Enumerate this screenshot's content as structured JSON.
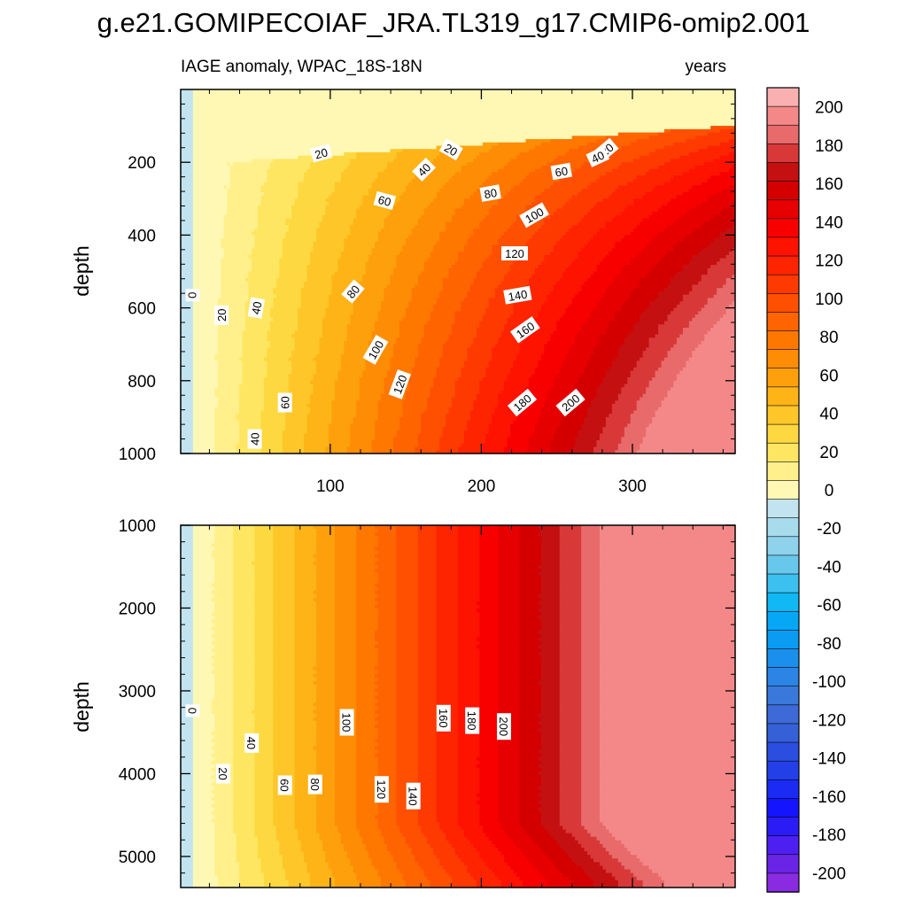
{
  "title": "g.e21.GOMIPECOIAF_JRA.TL319_g17.CMIP6-omip2.001",
  "chart_data": [
    {
      "type": "heatmap",
      "panel": "upper",
      "subtitle_left": "IAGE anomaly, WPAC_18S-18N",
      "subtitle_right": "years",
      "xlabel": "",
      "ylabel": "depth",
      "xlim": [
        1,
        368
      ],
      "ylim": [
        0,
        1000
      ],
      "y_inverted": true,
      "x_ticks": [
        100,
        200,
        300
      ],
      "x_tick_labels": [
        "100",
        "200",
        "300"
      ],
      "y_ticks": [
        200,
        400,
        600,
        800,
        1000
      ],
      "y_tick_labels": [
        "200",
        "400",
        "600",
        "800",
        "1000"
      ],
      "contour_labels": [
        {
          "text": "20",
          "x": 94,
          "y": 175,
          "angle": -15
        },
        {
          "text": "20",
          "x": 180,
          "y": 165,
          "angle": 30
        },
        {
          "text": "20",
          "x": 283,
          "y": 165,
          "angle": -40
        },
        {
          "text": "40",
          "x": 162,
          "y": 220,
          "angle": -45
        },
        {
          "text": "40",
          "x": 277,
          "y": 185,
          "angle": -25
        },
        {
          "text": "60",
          "x": 136,
          "y": 305,
          "angle": 15
        },
        {
          "text": "60",
          "x": 253,
          "y": 225,
          "angle": -10
        },
        {
          "text": "80",
          "x": 206,
          "y": 285,
          "angle": -10
        },
        {
          "text": "100",
          "x": 235,
          "y": 345,
          "angle": -30
        },
        {
          "text": "120",
          "x": 222,
          "y": 450,
          "angle": 0
        },
        {
          "text": "140",
          "x": 224,
          "y": 565,
          "angle": -10
        },
        {
          "text": "160",
          "x": 229,
          "y": 660,
          "angle": -35
        },
        {
          "text": "180",
          "x": 227,
          "y": 860,
          "angle": -40
        },
        {
          "text": "200",
          "x": 259,
          "y": 860,
          "angle": -40
        },
        {
          "text": "0",
          "x": 9,
          "y": 565,
          "angle": 90
        },
        {
          "text": "20",
          "x": 28,
          "y": 620,
          "angle": -90
        },
        {
          "text": "40",
          "x": 51,
          "y": 600,
          "angle": -80
        },
        {
          "text": "40",
          "x": 50,
          "y": 960,
          "angle": -90
        },
        {
          "text": "60",
          "x": 70,
          "y": 860,
          "angle": -90
        },
        {
          "text": "80",
          "x": 115,
          "y": 555,
          "angle": -50
        },
        {
          "text": "100",
          "x": 130,
          "y": 715,
          "angle": -60
        },
        {
          "text": "120",
          "x": 146,
          "y": 810,
          "angle": -70
        }
      ]
    },
    {
      "type": "heatmap",
      "panel": "lower",
      "xlabel": "",
      "ylabel": "depth",
      "xlim": [
        1,
        368
      ],
      "ylim": [
        1000,
        5375
      ],
      "y_inverted": true,
      "y_ticks": [
        1000,
        2000,
        3000,
        4000,
        5000
      ],
      "y_tick_labels": [
        "1000",
        "2000",
        "3000",
        "4000",
        "5000"
      ],
      "contour_labels": [
        {
          "text": "0",
          "x": 9,
          "y": 3240,
          "angle": 90
        },
        {
          "text": "20",
          "x": 29,
          "y": 4000,
          "angle": 90
        },
        {
          "text": "40",
          "x": 48,
          "y": 3630,
          "angle": 90
        },
        {
          "text": "60",
          "x": 70,
          "y": 4140,
          "angle": 90
        },
        {
          "text": "80",
          "x": 90,
          "y": 4130,
          "angle": 90
        },
        {
          "text": "100",
          "x": 111,
          "y": 3380,
          "angle": 90
        },
        {
          "text": "120",
          "x": 134,
          "y": 4190,
          "angle": 90
        },
        {
          "text": "140",
          "x": 155,
          "y": 4270,
          "angle": 90
        },
        {
          "text": "160",
          "x": 175,
          "y": 3330,
          "angle": 90
        },
        {
          "text": "180",
          "x": 194,
          "y": 3360,
          "angle": 90
        },
        {
          "text": "200",
          "x": 215,
          "y": 3430,
          "angle": 90
        }
      ]
    }
  ],
  "colorbar": {
    "levels": [
      -210,
      -200,
      -190,
      -180,
      -170,
      -160,
      -150,
      -140,
      -130,
      -120,
      -110,
      -100,
      -90,
      -80,
      -70,
      -60,
      -50,
      -40,
      -30,
      -20,
      -10,
      0,
      10,
      20,
      30,
      40,
      50,
      60,
      70,
      80,
      90,
      100,
      110,
      120,
      130,
      140,
      150,
      160,
      170,
      180,
      190,
      200,
      210
    ],
    "colors": [
      "#8a2be2",
      "#6a24e6",
      "#4d1ff0",
      "#2b1cf6",
      "#1414ff",
      "#1b2bf3",
      "#2340e8",
      "#2b4ee0",
      "#3560d8",
      "#3d6ad6",
      "#3a78dc",
      "#2c84e4",
      "#1a90ec",
      "#0a9cf2",
      "#06a8f6",
      "#10b8f4",
      "#3cc0f0",
      "#68c8ec",
      "#8ed2ec",
      "#a8dcec",
      "#c2e4f0",
      "#fff8b4",
      "#fff08c",
      "#fee662",
      "#fed840",
      "#fec628",
      "#feb416",
      "#fea00c",
      "#fe8c04",
      "#fe7800",
      "#fe6400",
      "#fe5000",
      "#fe3a00",
      "#fe2400",
      "#fe1200",
      "#f80000",
      "#e60000",
      "#d40000",
      "#c41010",
      "#d83838",
      "#e86a6a",
      "#f48888",
      "#fab0b0"
    ],
    "tick_values": [
      -200,
      -180,
      -160,
      -140,
      -120,
      -100,
      -80,
      -60,
      -40,
      -20,
      0,
      20,
      40,
      60,
      80,
      100,
      120,
      140,
      160,
      180,
      200
    ],
    "tick_labels": [
      "-200",
      "-180",
      "-160",
      "-140",
      "-120",
      "-100",
      "-80",
      "-60",
      "-40",
      "-20",
      "0",
      "20",
      "40",
      "60",
      "80",
      "100",
      "120",
      "140",
      "160",
      "180",
      "200"
    ]
  },
  "colors": {
    "negative_fill": "#c2e4f0",
    "outline": "#000000"
  }
}
